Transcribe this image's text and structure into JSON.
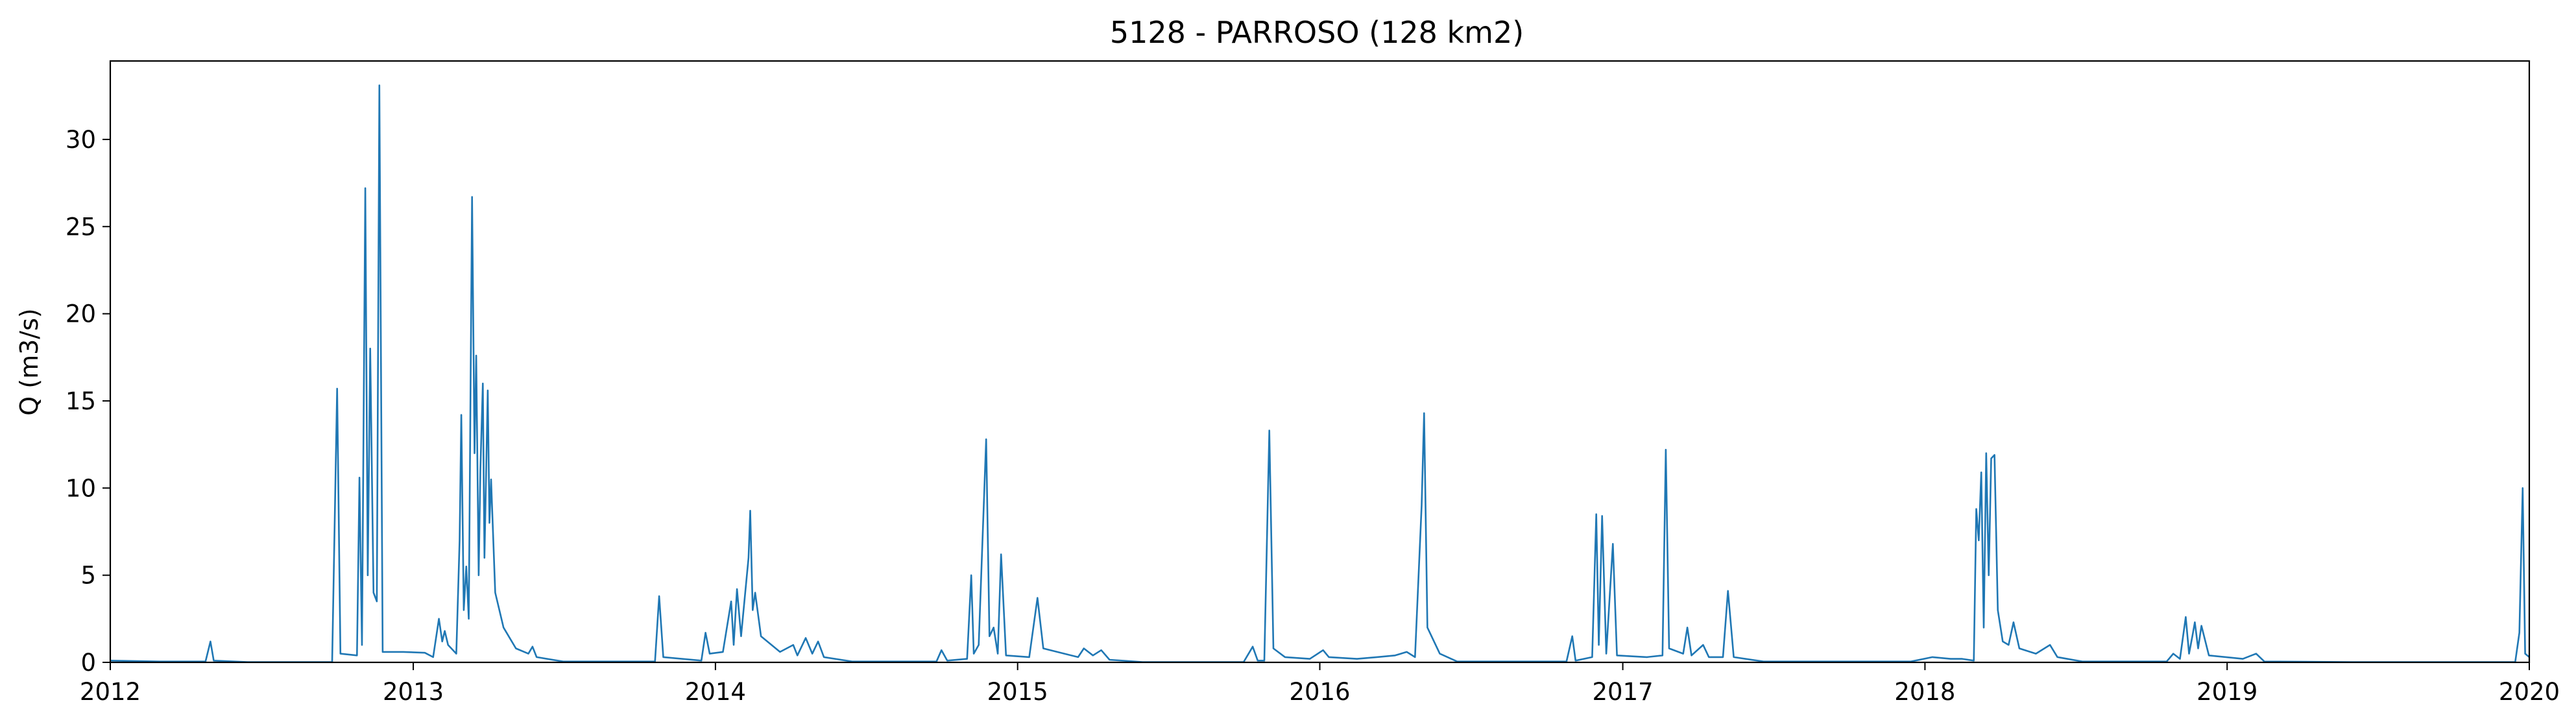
{
  "chart_data": {
    "type": "line",
    "title": "5128 - PARROSO (128 km2)",
    "xlabel": "",
    "ylabel": "Q (m3/s)",
    "xlim": [
      "2012-01-01",
      "2020-01-01"
    ],
    "ylim": [
      0,
      34.5
    ],
    "x_ticks": [
      {
        "label": "2012",
        "date": "2012-01-01"
      },
      {
        "label": "2013",
        "date": "2013-01-01"
      },
      {
        "label": "2014",
        "date": "2014-01-01"
      },
      {
        "label": "2015",
        "date": "2015-01-01"
      },
      {
        "label": "2016",
        "date": "2016-01-01"
      },
      {
        "label": "2017",
        "date": "2017-01-01"
      },
      {
        "label": "2018",
        "date": "2018-01-01"
      },
      {
        "label": "2019",
        "date": "2019-01-01"
      },
      {
        "label": "2020",
        "date": "2020-01-01"
      }
    ],
    "y_ticks": [
      0,
      5,
      10,
      15,
      20,
      25,
      30
    ],
    "grid": false,
    "legend": "none",
    "series": [
      {
        "color": "#1f77b4",
        "points": [
          [
            "2012-01-01",
            0.1
          ],
          [
            "2012-03-01",
            0.05
          ],
          [
            "2012-04-25",
            0.05
          ],
          [
            "2012-05-01",
            1.2
          ],
          [
            "2012-05-05",
            0.1
          ],
          [
            "2012-06-15",
            0.02
          ],
          [
            "2012-09-25",
            0.02
          ],
          [
            "2012-10-01",
            15.7
          ],
          [
            "2012-10-05",
            0.5
          ],
          [
            "2012-10-25",
            0.4
          ],
          [
            "2012-10-28",
            10.6
          ],
          [
            "2012-10-31",
            1.0
          ],
          [
            "2012-11-04",
            27.2
          ],
          [
            "2012-11-07",
            5.0
          ],
          [
            "2012-11-10",
            18.0
          ],
          [
            "2012-11-14",
            4.0
          ],
          [
            "2012-11-18",
            3.5
          ],
          [
            "2012-11-21",
            33.1
          ],
          [
            "2012-11-25",
            0.6
          ],
          [
            "2012-12-20",
            0.6
          ],
          [
            "2013-01-15",
            0.55
          ],
          [
            "2013-01-25",
            0.3
          ],
          [
            "2013-02-01",
            2.5
          ],
          [
            "2013-02-05",
            1.2
          ],
          [
            "2013-02-08",
            1.8
          ],
          [
            "2013-02-12",
            1.0
          ],
          [
            "2013-02-22",
            0.5
          ],
          [
            "2013-02-26",
            7.0
          ],
          [
            "2013-02-28",
            14.2
          ],
          [
            "2013-03-03",
            3.0
          ],
          [
            "2013-03-06",
            5.5
          ],
          [
            "2013-03-09",
            2.5
          ],
          [
            "2013-03-13",
            26.7
          ],
          [
            "2013-03-16",
            12.0
          ],
          [
            "2013-03-18",
            17.6
          ],
          [
            "2013-03-21",
            5.0
          ],
          [
            "2013-03-23",
            11.0
          ],
          [
            "2013-03-26",
            16.0
          ],
          [
            "2013-03-28",
            6.0
          ],
          [
            "2013-04-01",
            15.6
          ],
          [
            "2013-04-03",
            8.0
          ],
          [
            "2013-04-05",
            10.5
          ],
          [
            "2013-04-10",
            4.0
          ],
          [
            "2013-04-20",
            2.0
          ],
          [
            "2013-05-05",
            0.8
          ],
          [
            "2013-05-20",
            0.5
          ],
          [
            "2013-05-25",
            0.9
          ],
          [
            "2013-05-30",
            0.3
          ],
          [
            "2013-07-01",
            0.05
          ],
          [
            "2013-10-20",
            0.05
          ],
          [
            "2013-10-25",
            3.8
          ],
          [
            "2013-10-30",
            0.3
          ],
          [
            "2013-12-15",
            0.1
          ],
          [
            "2013-12-20",
            1.7
          ],
          [
            "2013-12-25",
            0.5
          ],
          [
            "2014-01-10",
            0.6
          ],
          [
            "2014-01-20",
            3.5
          ],
          [
            "2014-01-23",
            1.0
          ],
          [
            "2014-01-27",
            4.2
          ],
          [
            "2014-02-01",
            1.5
          ],
          [
            "2014-02-10",
            6.0
          ],
          [
            "2014-02-12",
            8.7
          ],
          [
            "2014-02-15",
            3.0
          ],
          [
            "2014-02-18",
            4.0
          ],
          [
            "2014-02-25",
            1.5
          ],
          [
            "2014-03-20",
            0.6
          ],
          [
            "2014-04-05",
            1.0
          ],
          [
            "2014-04-10",
            0.4
          ],
          [
            "2014-04-20",
            1.4
          ],
          [
            "2014-04-28",
            0.5
          ],
          [
            "2014-05-05",
            1.2
          ],
          [
            "2014-05-12",
            0.3
          ],
          [
            "2014-06-15",
            0.05
          ],
          [
            "2014-09-25",
            0.05
          ],
          [
            "2014-10-01",
            0.7
          ],
          [
            "2014-10-08",
            0.1
          ],
          [
            "2014-11-01",
            0.2
          ],
          [
            "2014-11-06",
            5.0
          ],
          [
            "2014-11-09",
            0.5
          ],
          [
            "2014-11-15",
            1.0
          ],
          [
            "2014-11-24",
            12.8
          ],
          [
            "2014-11-28",
            1.5
          ],
          [
            "2014-12-03",
            2.0
          ],
          [
            "2014-12-08",
            0.5
          ],
          [
            "2014-12-12",
            6.2
          ],
          [
            "2014-12-18",
            0.4
          ],
          [
            "2015-01-15",
            0.3
          ],
          [
            "2015-01-25",
            3.7
          ],
          [
            "2015-02-01",
            0.8
          ],
          [
            "2015-03-15",
            0.3
          ],
          [
            "2015-03-22",
            0.8
          ],
          [
            "2015-04-02",
            0.4
          ],
          [
            "2015-04-12",
            0.7
          ],
          [
            "2015-04-22",
            0.15
          ],
          [
            "2015-06-01",
            0.02
          ],
          [
            "2015-10-01",
            0.02
          ],
          [
            "2015-10-12",
            0.9
          ],
          [
            "2015-10-18",
            0.1
          ],
          [
            "2015-10-26",
            0.1
          ],
          [
            "2015-11-01",
            13.3
          ],
          [
            "2015-11-06",
            0.8
          ],
          [
            "2015-11-20",
            0.3
          ],
          [
            "2015-12-20",
            0.2
          ],
          [
            "2016-01-05",
            0.7
          ],
          [
            "2016-01-12",
            0.3
          ],
          [
            "2016-02-15",
            0.2
          ],
          [
            "2016-03-10",
            0.3
          ],
          [
            "2016-04-01",
            0.4
          ],
          [
            "2016-04-15",
            0.6
          ],
          [
            "2016-04-25",
            0.3
          ],
          [
            "2016-05-03",
            9.0
          ],
          [
            "2016-05-06",
            14.3
          ],
          [
            "2016-05-10",
            2.0
          ],
          [
            "2016-05-25",
            0.5
          ],
          [
            "2016-06-15",
            0.05
          ],
          [
            "2016-10-25",
            0.05
          ],
          [
            "2016-11-01",
            1.5
          ],
          [
            "2016-11-05",
            0.1
          ],
          [
            "2016-11-25",
            0.3
          ],
          [
            "2016-11-30",
            8.5
          ],
          [
            "2016-12-03",
            1.0
          ],
          [
            "2016-12-07",
            8.4
          ],
          [
            "2016-12-12",
            0.5
          ],
          [
            "2016-12-20",
            6.8
          ],
          [
            "2016-12-25",
            0.4
          ],
          [
            "2017-01-30",
            0.3
          ],
          [
            "2017-02-18",
            0.4
          ],
          [
            "2017-02-22",
            12.2
          ],
          [
            "2017-02-26",
            0.8
          ],
          [
            "2017-03-15",
            0.5
          ],
          [
            "2017-03-20",
            2.0
          ],
          [
            "2017-03-25",
            0.4
          ],
          [
            "2017-04-08",
            1.0
          ],
          [
            "2017-04-15",
            0.3
          ],
          [
            "2017-05-02",
            0.3
          ],
          [
            "2017-05-08",
            4.1
          ],
          [
            "2017-05-15",
            0.3
          ],
          [
            "2017-06-20",
            0.05
          ],
          [
            "2017-12-15",
            0.05
          ],
          [
            "2018-01-10",
            0.3
          ],
          [
            "2018-02-01",
            0.2
          ],
          [
            "2018-02-15",
            0.2
          ],
          [
            "2018-03-01",
            0.1
          ],
          [
            "2018-03-04",
            8.8
          ],
          [
            "2018-03-07",
            7.0
          ],
          [
            "2018-03-10",
            10.9
          ],
          [
            "2018-03-13",
            2.0
          ],
          [
            "2018-03-16",
            12.0
          ],
          [
            "2018-03-19",
            5.0
          ],
          [
            "2018-03-22",
            11.7
          ],
          [
            "2018-03-26",
            11.9
          ],
          [
            "2018-03-30",
            3.0
          ],
          [
            "2018-04-05",
            1.2
          ],
          [
            "2018-04-12",
            1.0
          ],
          [
            "2018-04-18",
            2.3
          ],
          [
            "2018-04-25",
            0.8
          ],
          [
            "2018-05-15",
            0.5
          ],
          [
            "2018-06-01",
            1.0
          ],
          [
            "2018-06-10",
            0.3
          ],
          [
            "2018-07-10",
            0.05
          ],
          [
            "2018-10-20",
            0.05
          ],
          [
            "2018-10-28",
            0.5
          ],
          [
            "2018-11-05",
            0.2
          ],
          [
            "2018-11-12",
            2.6
          ],
          [
            "2018-11-16",
            0.5
          ],
          [
            "2018-11-20",
            1.5
          ],
          [
            "2018-11-23",
            2.3
          ],
          [
            "2018-11-27",
            0.8
          ],
          [
            "2018-12-01",
            2.1
          ],
          [
            "2018-12-10",
            0.4
          ],
          [
            "2019-01-20",
            0.2
          ],
          [
            "2019-02-05",
            0.5
          ],
          [
            "2019-02-15",
            0.05
          ],
          [
            "2019-06-01",
            0.02
          ],
          [
            "2019-12-15",
            0.02
          ],
          [
            "2019-12-20",
            1.7
          ],
          [
            "2019-12-24",
            10.0
          ],
          [
            "2019-12-27",
            0.5
          ],
          [
            "2020-01-01",
            0.3
          ]
        ]
      }
    ]
  }
}
